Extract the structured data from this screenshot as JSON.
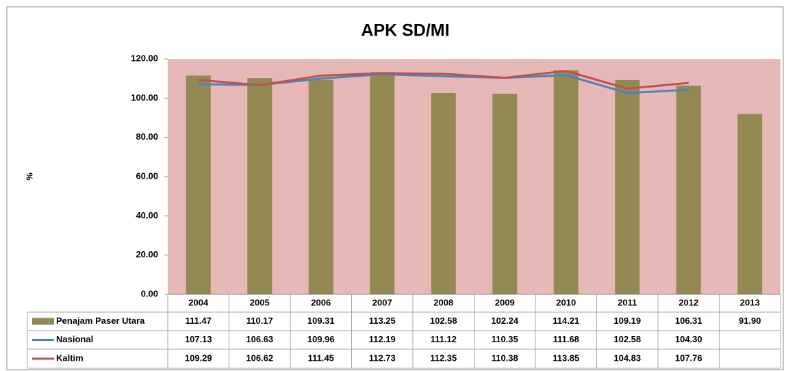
{
  "chart_data": {
    "type": "bar",
    "title": "APK SD/MI",
    "y_label": "%",
    "categories": [
      "2004",
      "2005",
      "2006",
      "2007",
      "2008",
      "2009",
      "2010",
      "2011",
      "2012",
      "2013"
    ],
    "series": [
      {
        "name": "Penajam Paser Utara",
        "type": "bar",
        "color": "#938953",
        "values": [
          111.47,
          110.17,
          109.31,
          113.25,
          102.58,
          102.24,
          114.21,
          109.19,
          106.31,
          91.9
        ],
        "value_labels": [
          "111.47",
          "110.17",
          "109.31",
          "113.25",
          "102.58",
          "102.24",
          "114.21",
          "109.19",
          "106.31",
          "91.90"
        ]
      },
      {
        "name": "Nasional",
        "type": "line",
        "color": "#4f81bd",
        "values": [
          107.13,
          106.63,
          109.96,
          112.19,
          111.12,
          110.35,
          111.68,
          102.58,
          104.3,
          null
        ],
        "value_labels": [
          "107.13",
          "106.63",
          "109.96",
          "112.19",
          "111.12",
          "110.35",
          "111.68",
          "102.58",
          "104.30",
          null
        ]
      },
      {
        "name": "Kaltim",
        "type": "line",
        "color": "#c0504d",
        "values": [
          109.29,
          106.62,
          111.45,
          112.73,
          112.35,
          110.38,
          113.85,
          104.83,
          107.76,
          null
        ],
        "value_labels": [
          "109.29",
          "106.62",
          "111.45",
          "112.73",
          "112.35",
          "110.38",
          "113.85",
          "104.83",
          "107.76",
          null
        ]
      }
    ],
    "ylim": [
      0,
      120
    ],
    "yticks": [
      {
        "value": 0,
        "label": "0.00"
      },
      {
        "value": 20,
        "label": "20.00"
      },
      {
        "value": 40,
        "label": "40.00"
      },
      {
        "value": 60,
        "label": "60.00"
      },
      {
        "value": 80,
        "label": "80.00"
      },
      {
        "value": 100,
        "label": "100.00"
      },
      {
        "value": 120,
        "label": "120.00"
      }
    ],
    "plot_background": "#e6b8b7",
    "grid": false,
    "legend": "data-table"
  }
}
